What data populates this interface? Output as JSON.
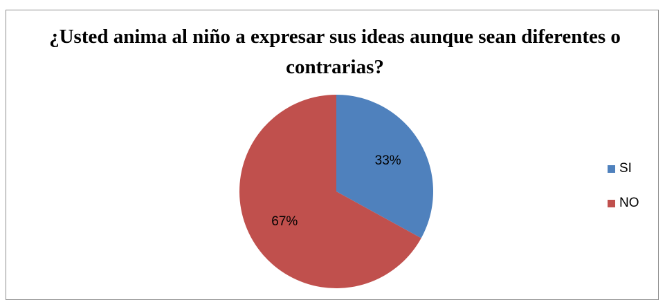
{
  "chart_data": {
    "type": "pie",
    "title": "¿Usted anima al niño a expresar sus ideas aunque sean diferentes o contrarias?",
    "categories": [
      "SI",
      "NO"
    ],
    "values": [
      33,
      67
    ],
    "data_labels": [
      "33%",
      "67%"
    ],
    "colors": [
      "#4F81BD",
      "#C0504D"
    ],
    "legend_position": "right",
    "start_angle": "12 o'clock",
    "direction": "clockwise"
  }
}
